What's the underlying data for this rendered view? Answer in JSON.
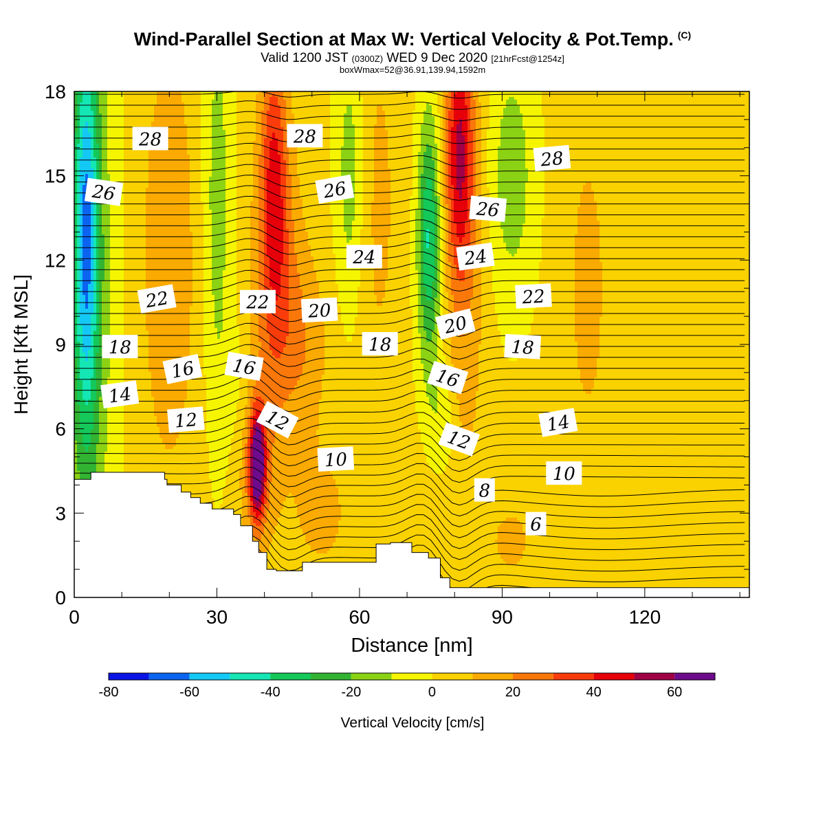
{
  "title": "Wind-Parallel Section at Max W: Vertical Velocity & Pot.Temp.",
  "title_mark": "(C)",
  "subtitle_pre": "Valid 1200 JST",
  "subtitle_utc": "(0300Z)",
  "subtitle_mid": "WED 9 Dec 2020",
  "subtitle_fcst": "[21hrFcst@1254z]",
  "subtitle2": "boxWmax=52@36.91,139.94,1592m",
  "chart_data": {
    "type": "heatmap",
    "xlabel": "Distance [nm]",
    "ylabel": "Height [Kft MSL]",
    "xlim": [
      0,
      142
    ],
    "ylim": [
      0,
      18
    ],
    "x_ticks": [
      0,
      30,
      60,
      90,
      120
    ],
    "y_ticks": [
      0,
      3,
      6,
      9,
      12,
      15,
      18
    ],
    "colorbar": {
      "label": "Vertical Velocity [cm/s]",
      "ticks": [
        -80,
        -60,
        -40,
        -20,
        0,
        20,
        40,
        60
      ],
      "bounds": [
        -80,
        70
      ],
      "colors": [
        "#0a14e6",
        "#0a64f0",
        "#14c8f5",
        "#14e6b4",
        "#14c85a",
        "#32b432",
        "#8cd214",
        "#f5f500",
        "#fad200",
        "#faaa00",
        "#fa780a",
        "#fa3c0a",
        "#e6000a",
        "#a00046",
        "#6e0a8c"
      ]
    },
    "theta_labels": [
      {
        "text": "28",
        "x": 16,
        "y": 16.3,
        "rot": 0
      },
      {
        "text": "28",
        "x": 48.5,
        "y": 16.4,
        "rot": 0
      },
      {
        "text": "28",
        "x": 100.5,
        "y": 15.6,
        "rot": -5
      },
      {
        "text": "26",
        "x": 6.2,
        "y": 14.4,
        "rot": 8
      },
      {
        "text": "26",
        "x": 54.8,
        "y": 14.5,
        "rot": -10
      },
      {
        "text": "26",
        "x": 87,
        "y": 13.8,
        "rot": 5
      },
      {
        "text": "24",
        "x": 61,
        "y": 12.1,
        "rot": 0
      },
      {
        "text": "24",
        "x": 84.4,
        "y": 12.1,
        "rot": -8
      },
      {
        "text": "22",
        "x": 17.4,
        "y": 10.6,
        "rot": -10
      },
      {
        "text": "22",
        "x": 38.6,
        "y": 10.5,
        "rot": 0
      },
      {
        "text": "22",
        "x": 96.6,
        "y": 10.7,
        "rot": -3
      },
      {
        "text": "20",
        "x": 51.6,
        "y": 10.2,
        "rot": -3
      },
      {
        "text": "20",
        "x": 80.2,
        "y": 9.7,
        "rot": -14
      },
      {
        "text": "18",
        "x": 9.6,
        "y": 8.9,
        "rot": 0
      },
      {
        "text": "18",
        "x": 64.3,
        "y": 9.0,
        "rot": 0
      },
      {
        "text": "18",
        "x": 94.3,
        "y": 8.9,
        "rot": 3
      },
      {
        "text": "16",
        "x": 22.8,
        "y": 8.1,
        "rot": -12
      },
      {
        "text": "16",
        "x": 35.7,
        "y": 8.2,
        "rot": 10
      },
      {
        "text": "16",
        "x": 78.5,
        "y": 7.8,
        "rot": 18
      },
      {
        "text": "14",
        "x": 9.6,
        "y": 7.2,
        "rot": -8
      },
      {
        "text": "14",
        "x": 101.8,
        "y": 6.2,
        "rot": -10
      },
      {
        "text": "12",
        "x": 23.5,
        "y": 6.3,
        "rot": -5
      },
      {
        "text": "12",
        "x": 42.7,
        "y": 6.3,
        "rot": 28
      },
      {
        "text": "12",
        "x": 80.9,
        "y": 5.6,
        "rot": 20
      },
      {
        "text": "10",
        "x": 55,
        "y": 4.9,
        "rot": -3
      },
      {
        "text": "10",
        "x": 103,
        "y": 4.4,
        "rot": 0
      },
      {
        "text": "8",
        "x": 86.3,
        "y": 3.8,
        "rot": 0
      },
      {
        "text": "6",
        "x": 97.1,
        "y": 2.6,
        "rot": 0
      }
    ]
  }
}
